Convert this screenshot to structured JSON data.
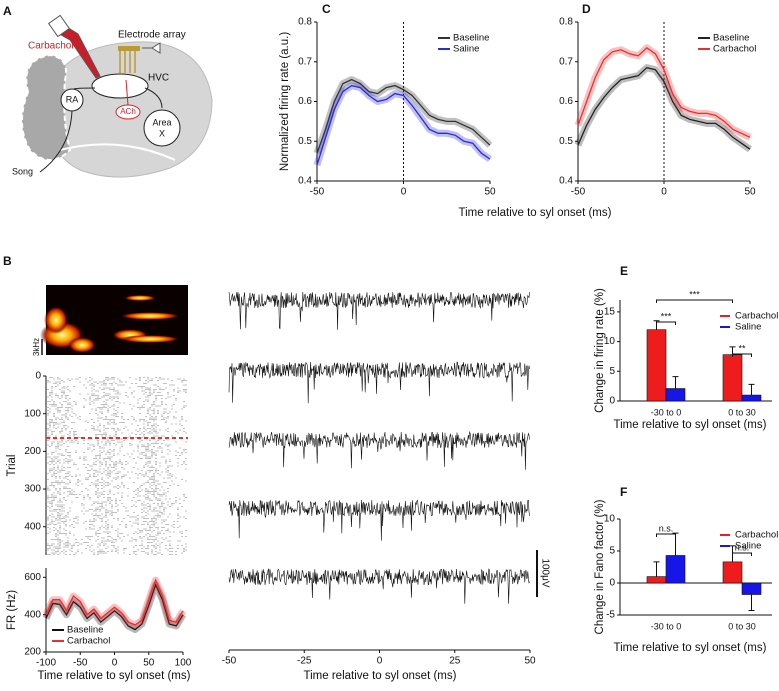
{
  "panel_a": {
    "label": "A",
    "carbachol": "Carbachol",
    "electrode": "Electrode array",
    "hvc": "HVC",
    "ra": "RA",
    "ach": "ACh",
    "area_x": [
      "Area",
      "X"
    ],
    "song": "Song"
  },
  "chart_data": [
    {
      "type": "line",
      "label": "C",
      "ylabel": "Normalized firing rate (a.u.)",
      "xlabel": "Time relative to syl onset (ms)",
      "band": true,
      "legend": "upper-right",
      "onset_line": true,
      "x": [
        -50,
        -45,
        -40,
        -35,
        -30,
        -25,
        -20,
        -15,
        -10,
        -5,
        0,
        5,
        10,
        15,
        20,
        25,
        30,
        35,
        40,
        45,
        50
      ],
      "xlim": [
        -50,
        50
      ],
      "xticks": [
        -50,
        0,
        50
      ],
      "ylim": [
        0.4,
        0.8
      ],
      "yticks": [
        0.4,
        0.5,
        0.6,
        0.7,
        0.8
      ],
      "series": [
        {
          "name": "Baseline",
          "color": "#333333",
          "values": [
            0.47,
            0.53,
            0.6,
            0.645,
            0.655,
            0.645,
            0.625,
            0.62,
            0.635,
            0.64,
            0.63,
            0.615,
            0.59,
            0.565,
            0.555,
            0.55,
            0.55,
            0.54,
            0.53,
            0.51,
            0.49
          ]
        },
        {
          "name": "Saline",
          "color": "#2b2bd0",
          "values": [
            0.44,
            0.51,
            0.58,
            0.625,
            0.64,
            0.635,
            0.615,
            0.6,
            0.605,
            0.62,
            0.615,
            0.59,
            0.56,
            0.53,
            0.52,
            0.52,
            0.515,
            0.5,
            0.495,
            0.47,
            0.455
          ]
        }
      ]
    },
    {
      "type": "line",
      "label": "D",
      "band": true,
      "legend": "upper-right",
      "onset_line": true,
      "x": [
        -50,
        -45,
        -40,
        -35,
        -30,
        -25,
        -20,
        -15,
        -10,
        -5,
        0,
        5,
        10,
        15,
        20,
        25,
        30,
        35,
        40,
        45,
        50
      ],
      "xlim": [
        -50,
        50
      ],
      "xticks": [
        -50,
        0,
        50
      ],
      "ylim": [
        0.4,
        0.8
      ],
      "yticks": [
        0.4,
        0.5,
        0.6,
        0.7,
        0.8
      ],
      "series": [
        {
          "name": "Baseline",
          "color": "#222222",
          "values": [
            0.49,
            0.54,
            0.58,
            0.61,
            0.635,
            0.655,
            0.66,
            0.665,
            0.685,
            0.68,
            0.65,
            0.6,
            0.565,
            0.555,
            0.55,
            0.545,
            0.545,
            0.53,
            0.51,
            0.495,
            0.48
          ]
        },
        {
          "name": "Carbachol",
          "color": "#e83030",
          "values": [
            0.54,
            0.6,
            0.66,
            0.705,
            0.725,
            0.73,
            0.72,
            0.715,
            0.735,
            0.72,
            0.68,
            0.62,
            0.585,
            0.575,
            0.57,
            0.57,
            0.565,
            0.55,
            0.53,
            0.52,
            0.51
          ]
        }
      ]
    },
    {
      "type": "raster",
      "label": "B",
      "spectrogram_label": "3kHz",
      "ylabel": "Trial",
      "y_inverted": true,
      "ylim": [
        0,
        475
      ],
      "yticks": [
        0,
        100,
        200,
        300,
        400
      ]
    },
    {
      "type": "line",
      "ylabel": "FR (Hz)",
      "xlabel": "Time relative to syl onset (ms)",
      "band": true,
      "legend": "lower-left",
      "x": [
        -100,
        -90,
        -80,
        -70,
        -60,
        -50,
        -40,
        -30,
        -20,
        -10,
        0,
        10,
        20,
        30,
        40,
        50,
        60,
        70,
        80,
        90,
        100
      ],
      "xlim": [
        -100,
        100
      ],
      "xticks": [
        -100,
        -50,
        0,
        50,
        100
      ],
      "ylim": [
        200,
        650
      ],
      "yticks": [
        200,
        400,
        600
      ],
      "series": [
        {
          "name": "Baseline",
          "color": "#111111",
          "values": [
            380,
            460,
            455,
            400,
            470,
            440,
            380,
            410,
            360,
            390,
            420,
            390,
            340,
            320,
            350,
            450,
            560,
            480,
            350,
            340,
            400
          ]
        },
        {
          "name": "Carbachol",
          "color": "#e83030",
          "values": [
            400,
            480,
            480,
            420,
            500,
            470,
            400,
            430,
            380,
            410,
            440,
            410,
            360,
            345,
            370,
            480,
            585,
            500,
            370,
            360,
            420
          ]
        }
      ]
    },
    {
      "type": "traces",
      "xlabel": "Time relative to syl onset (ms)",
      "scale_bar_label": "100μV",
      "xlim": [
        -50,
        50
      ],
      "xticks": [
        -50,
        -25,
        0,
        25,
        50
      ]
    },
    {
      "type": "bar",
      "label": "E",
      "ylabel": "Change in firing rate (%)",
      "xlabel": "Time relative to syl onset (ms)",
      "legend": "upper-right",
      "categories": [
        "-30 to 0",
        "0 to 30"
      ],
      "ylim": [
        0,
        17
      ],
      "yticks": [
        0,
        5,
        10,
        15
      ],
      "series": [
        {
          "name": "Carbachol",
          "color": "#ee1c1c",
          "values": [
            12,
            7.8
          ],
          "errors": [
            1.5,
            1.3
          ]
        },
        {
          "name": "Saline",
          "color": "#1616e8",
          "values": [
            2.1,
            1.0
          ],
          "errors": [
            2.0,
            1.8
          ]
        }
      ],
      "annotations": [
        "***",
        "***",
        "**"
      ]
    },
    {
      "type": "bar",
      "label": "F",
      "ylabel": "Change in Fano factor (%)",
      "xlabel": "Time relative to syl onset (ms)",
      "legend": "upper-right",
      "categories": [
        "-30 to 0",
        "0 to 30"
      ],
      "ylim": [
        -5,
        10
      ],
      "yticks": [
        -5,
        0,
        5,
        10
      ],
      "series": [
        {
          "name": "Carbachol",
          "color": "#ee1c1c",
          "values": [
            1.0,
            3.3
          ],
          "errors": [
            2.3,
            2.5
          ]
        },
        {
          "name": "Saline",
          "color": "#1616e8",
          "values": [
            4.3,
            -1.8
          ],
          "errors": [
            3.5,
            2.5
          ]
        }
      ],
      "annotations": [
        "n.s.",
        "n.s."
      ]
    }
  ]
}
